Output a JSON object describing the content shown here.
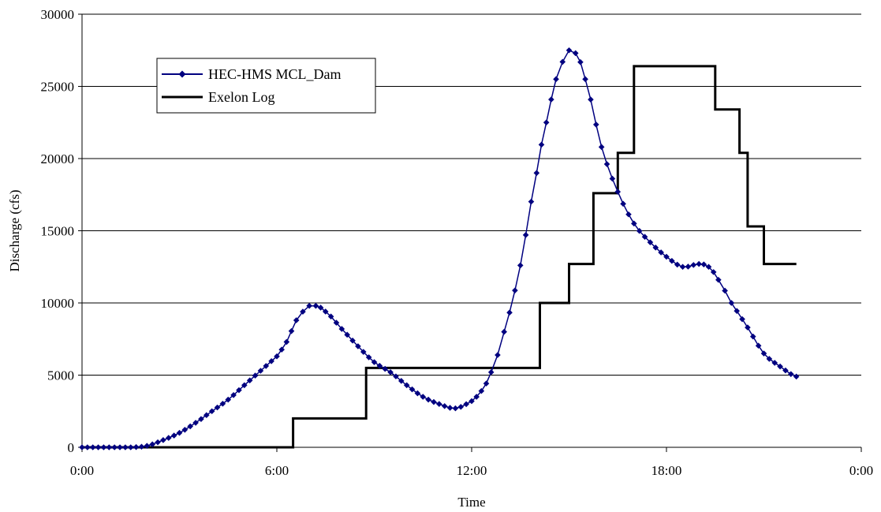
{
  "chart_data": {
    "type": "line",
    "xlabel": "Time",
    "ylabel": "Discharge (cfs)",
    "xlim": [
      0,
      24
    ],
    "ylim": [
      0,
      30000
    ],
    "x_ticks": [
      0,
      6,
      12,
      18,
      24
    ],
    "x_tick_labels": [
      "0:00",
      "6:00",
      "12:00",
      "18:00",
      "0:00"
    ],
    "y_ticks": [
      0,
      5000,
      10000,
      15000,
      20000,
      25000,
      30000
    ],
    "grid": "horizontal",
    "legend_position": "top-left",
    "series": [
      {
        "name": "HEC-HMS MCL_Dam",
        "color": "#000080",
        "marker": "diamond",
        "x": [
          0,
          0.5,
          1,
          1.5,
          2,
          2.5,
          3,
          3.5,
          4,
          4.5,
          5,
          5.5,
          6,
          6.3,
          6.6,
          7,
          7.2,
          7.5,
          8,
          8.5,
          9,
          9.5,
          10,
          10.5,
          11,
          11.5,
          12,
          12.3,
          12.6,
          13,
          13.5,
          14,
          14.3,
          14.6,
          15,
          15.2,
          15.5,
          16,
          16.5,
          17,
          17.5,
          18,
          18.5,
          19,
          19.3,
          19.6,
          20,
          20.5,
          21,
          21.5,
          22
        ],
        "y": [
          0,
          0,
          0,
          0,
          100,
          500,
          1000,
          1700,
          2500,
          3300,
          4300,
          5300,
          6300,
          7300,
          8800,
          9800,
          9800,
          9400,
          8200,
          7000,
          5900,
          5200,
          4300,
          3500,
          3000,
          2700,
          3200,
          3900,
          5200,
          8000,
          12600,
          19000,
          22500,
          25500,
          27500,
          27300,
          25500,
          20800,
          17700,
          15500,
          14200,
          13200,
          12500,
          12700,
          12500,
          11600,
          10000,
          8300,
          6500,
          5600,
          4900
        ]
      },
      {
        "name": "Exelon Log",
        "color": "#000000",
        "marker": "none",
        "step": true,
        "x": [
          0,
          6.5,
          6.5,
          8.75,
          8.75,
          14.1,
          14.1,
          15,
          15,
          15.75,
          15.75,
          16.5,
          16.5,
          17,
          17,
          19.5,
          19.5,
          20.25,
          20.25,
          20.5,
          20.5,
          21,
          21,
          21.5,
          21.5,
          22
        ],
        "y": [
          0,
          0,
          2000,
          2000,
          5500,
          5500,
          10000,
          10000,
          12700,
          12700,
          17600,
          17600,
          20400,
          20400,
          26400,
          26400,
          23400,
          23400,
          20400,
          20400,
          15300,
          15300,
          12700,
          12700,
          12700,
          12700
        ]
      }
    ]
  }
}
